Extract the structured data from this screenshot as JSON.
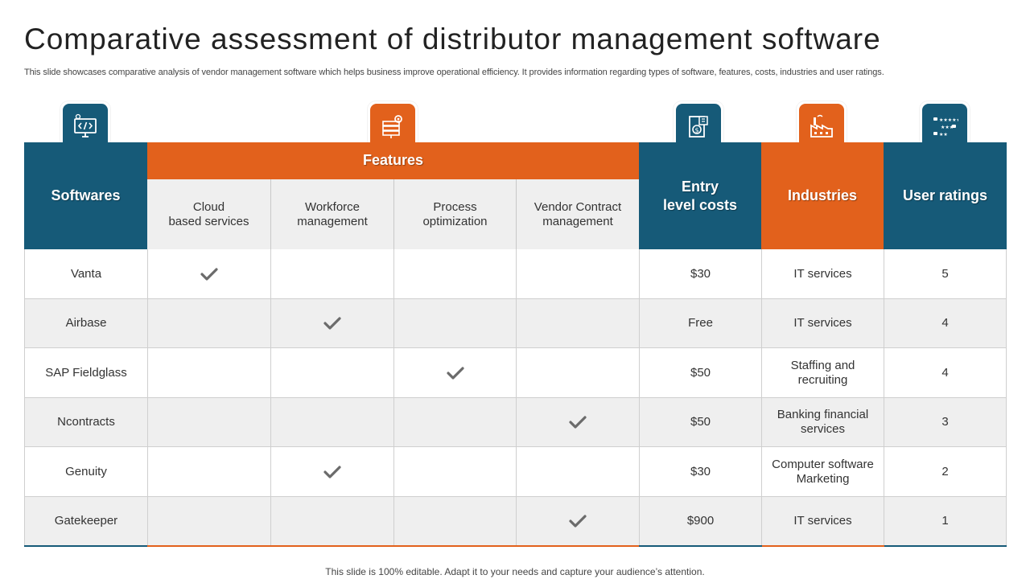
{
  "title": "Comparative assessment of distributor management software",
  "subtitle": "This slide showcases comparative analysis of vendor management software which helps business improve operational efficiency. It provides information regarding types of software, features, costs, industries and user ratings.",
  "footer": "This slide is 100% editable. Adapt it to your needs and capture your audience’s attention.",
  "headers": {
    "softwares": "Softwares",
    "features": "Features",
    "entry_costs": "Entry\nlevel costs",
    "industries": "Industries",
    "user_ratings": "User ratings"
  },
  "feature_columns": [
    "Cloud\nbased services",
    "Workforce\nmanagement",
    "Process\noptimization",
    "Vendor Contract\nmanagement"
  ],
  "icons": [
    "code-monitor-icon",
    "server-gear-icon",
    "invoice-dollar-icon",
    "factory-icon",
    "rating-stars-icon"
  ],
  "colors": {
    "blue": "#165a78",
    "orange": "#e2611c",
    "check": "#6b6b6b"
  },
  "rows": [
    {
      "software": "Vanta",
      "feature": 0,
      "cost": "$30",
      "industry": "IT services",
      "rating": "5"
    },
    {
      "software": "Airbase",
      "feature": 1,
      "cost": "Free",
      "industry": "IT services",
      "rating": "4"
    },
    {
      "software": "SAP Fieldglass",
      "feature": 2,
      "cost": "$50",
      "industry": "Staffing and\nrecruiting",
      "rating": "4"
    },
    {
      "software": "Ncontracts",
      "feature": 3,
      "cost": "$50",
      "industry": "Banking financial\nservices",
      "rating": "3"
    },
    {
      "software": "Genuity",
      "feature": 1,
      "cost": "$30",
      "industry": "Computer software\nMarketing",
      "rating": "2"
    },
    {
      "software": "Gatekeeper",
      "feature": 3,
      "cost": "$900",
      "industry": "IT services",
      "rating": "1"
    }
  ]
}
